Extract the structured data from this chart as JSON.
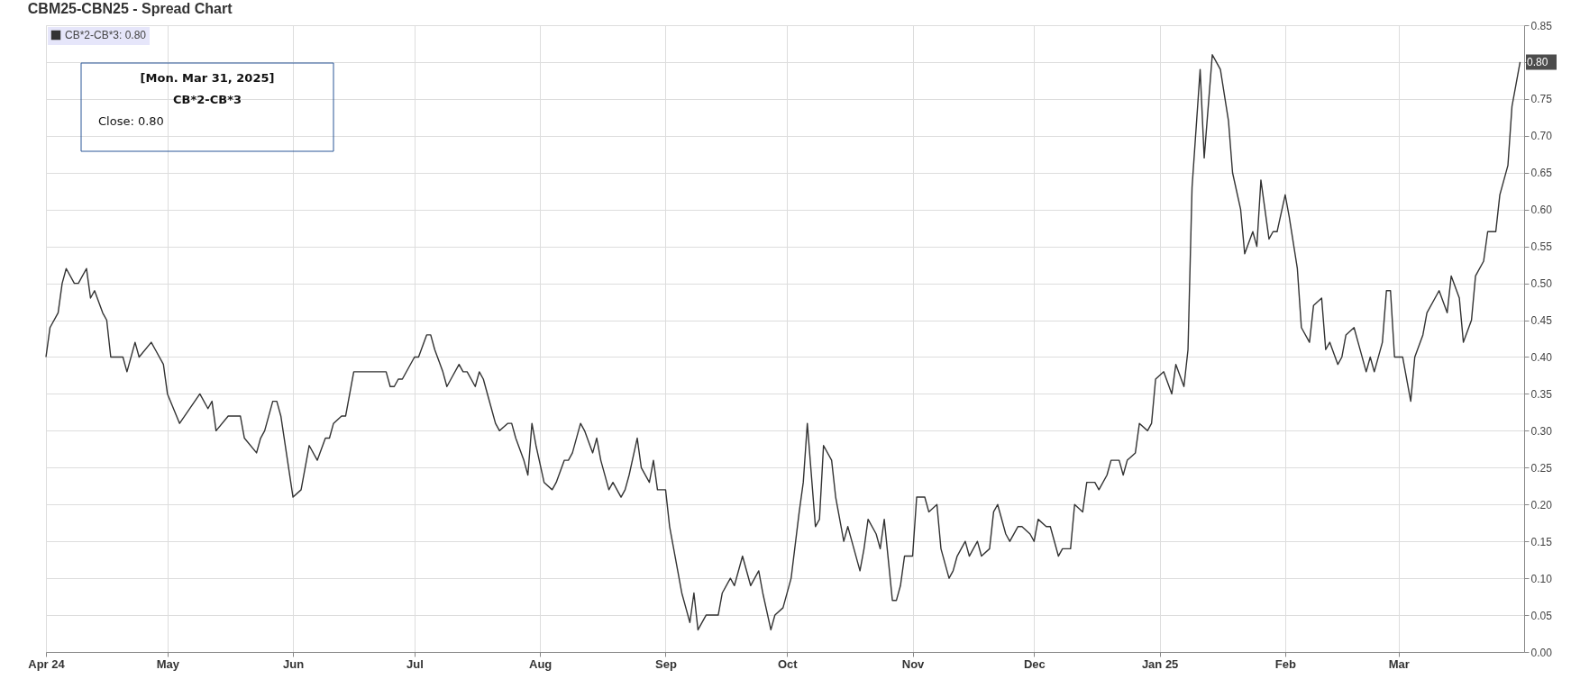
{
  "chart_data": {
    "type": "line",
    "title": "CBM25-CBN25 - Spread Chart",
    "annotations": [
      "[Mon. Mar 31, 2025]",
      "CB*2-CB*3",
      "Close: 0.80"
    ],
    "x": [
      "2024-04-01",
      "2024-04-02",
      "2024-04-04",
      "2024-04-05",
      "2024-04-06",
      "2024-04-08",
      "2024-04-09",
      "2024-04-11",
      "2024-04-12",
      "2024-04-13",
      "2024-04-15",
      "2024-04-16",
      "2024-04-17",
      "2024-04-20",
      "2024-04-21",
      "2024-04-23",
      "2024-04-24",
      "2024-04-27",
      "2024-04-28",
      "2024-04-30",
      "2024-05-01",
      "2024-05-04",
      "2024-05-09",
      "2024-05-11",
      "2024-05-12",
      "2024-05-13",
      "2024-05-16",
      "2024-05-19",
      "2024-05-20",
      "2024-05-23",
      "2024-05-24",
      "2024-05-25",
      "2024-05-27",
      "2024-05-28",
      "2024-05-29",
      "2024-06-01",
      "2024-06-03",
      "2024-06-05",
      "2024-06-07",
      "2024-06-09",
      "2024-06-10",
      "2024-06-11",
      "2024-06-13",
      "2024-06-14",
      "2024-06-16",
      "2024-06-24",
      "2024-06-25",
      "2024-06-26",
      "2024-06-27",
      "2024-06-28",
      "2024-07-01",
      "2024-07-02",
      "2024-07-04",
      "2024-07-05",
      "2024-07-06",
      "2024-07-08",
      "2024-07-09",
      "2024-07-10",
      "2024-07-12",
      "2024-07-13",
      "2024-07-14",
      "2024-07-16",
      "2024-07-17",
      "2024-07-18",
      "2024-07-20",
      "2024-07-21",
      "2024-07-22",
      "2024-07-24",
      "2024-07-25",
      "2024-07-26",
      "2024-07-28",
      "2024-07-29",
      "2024-07-30",
      "2024-07-31",
      "2024-08-02",
      "2024-08-04",
      "2024-08-05",
      "2024-08-07",
      "2024-08-08",
      "2024-08-09",
      "2024-08-11",
      "2024-08-12",
      "2024-08-14",
      "2024-08-15",
      "2024-08-16",
      "2024-08-18",
      "2024-08-19",
      "2024-08-21",
      "2024-08-22",
      "2024-08-23",
      "2024-08-25",
      "2024-08-26",
      "2024-08-28",
      "2024-08-29",
      "2024-08-30",
      "2024-09-01",
      "2024-09-02",
      "2024-09-04",
      "2024-09-05",
      "2024-09-07",
      "2024-09-08",
      "2024-09-09",
      "2024-09-11",
      "2024-09-14",
      "2024-09-15",
      "2024-09-17",
      "2024-09-18",
      "2024-09-20",
      "2024-09-22",
      "2024-09-24",
      "2024-09-25",
      "2024-09-27",
      "2024-09-28",
      "2024-09-30",
      "2024-10-02",
      "2024-10-04",
      "2024-10-05",
      "2024-10-06",
      "2024-10-08",
      "2024-10-09",
      "2024-10-10",
      "2024-10-12",
      "2024-10-13",
      "2024-10-15",
      "2024-10-16",
      "2024-10-17",
      "2024-10-19",
      "2024-10-20",
      "2024-10-21",
      "2024-10-23",
      "2024-10-24",
      "2024-10-25",
      "2024-10-27",
      "2024-10-28",
      "2024-10-29",
      "2024-10-30",
      "2024-11-01",
      "2024-11-02",
      "2024-11-04",
      "2024-11-05",
      "2024-11-07",
      "2024-11-08",
      "2024-11-10",
      "2024-11-11",
      "2024-11-12",
      "2024-11-14",
      "2024-11-15",
      "2024-11-17",
      "2024-11-18",
      "2024-11-20",
      "2024-11-21",
      "2024-11-22",
      "2024-11-24",
      "2024-11-25",
      "2024-11-27",
      "2024-11-28",
      "2024-11-30",
      "2024-12-01",
      "2024-12-02",
      "2024-12-04",
      "2024-12-05",
      "2024-12-07",
      "2024-12-08",
      "2024-12-10",
      "2024-12-11",
      "2024-12-13",
      "2024-12-14",
      "2024-12-16",
      "2024-12-17",
      "2024-12-19",
      "2024-12-20",
      "2024-12-22",
      "2024-12-23",
      "2024-12-24",
      "2024-12-26",
      "2024-12-27",
      "2024-12-29",
      "2024-12-30",
      "2024-12-31",
      "2025-01-02",
      "2025-01-04",
      "2025-01-05",
      "2025-01-07",
      "2025-01-08",
      "2025-01-09",
      "2025-01-11",
      "2025-01-12",
      "2025-01-14",
      "2025-01-15",
      "2025-01-16",
      "2025-01-18",
      "2025-01-19",
      "2025-01-21",
      "2025-01-22",
      "2025-01-24",
      "2025-01-25",
      "2025-01-26",
      "2025-01-28",
      "2025-01-29",
      "2025-01-30",
      "2025-02-01",
      "2025-02-02",
      "2025-02-04",
      "2025-02-05",
      "2025-02-07",
      "2025-02-08",
      "2025-02-10",
      "2025-02-11",
      "2025-02-12",
      "2025-02-14",
      "2025-02-15",
      "2025-02-16",
      "2025-02-18",
      "2025-02-19",
      "2025-02-21",
      "2025-02-22",
      "2025-02-23",
      "2025-02-25",
      "2025-02-26",
      "2025-02-27",
      "2025-02-28",
      "2025-03-02",
      "2025-03-04",
      "2025-03-05",
      "2025-03-07",
      "2025-03-08",
      "2025-03-10",
      "2025-03-11",
      "2025-03-13",
      "2025-03-14",
      "2025-03-16",
      "2025-03-17",
      "2025-03-19",
      "2025-03-20",
      "2025-03-22",
      "2025-03-23",
      "2025-03-25",
      "2025-03-26",
      "2025-03-28",
      "2025-03-29",
      "2025-03-31"
    ],
    "series": [
      {
        "name": "CB*2-CB*3: 0.80",
        "color": "#333333",
        "values": [
          0.4,
          0.44,
          0.46,
          0.5,
          0.52,
          0.5,
          0.5,
          0.52,
          0.48,
          0.49,
          0.46,
          0.45,
          0.4,
          0.4,
          0.38,
          0.42,
          0.4,
          0.42,
          0.41,
          0.39,
          0.35,
          0.31,
          0.35,
          0.33,
          0.34,
          0.3,
          0.32,
          0.32,
          0.29,
          0.27,
          0.29,
          0.3,
          0.34,
          0.34,
          0.32,
          0.21,
          0.22,
          0.28,
          0.26,
          0.29,
          0.29,
          0.31,
          0.32,
          0.32,
          0.38,
          0.38,
          0.36,
          0.36,
          0.37,
          0.37,
          0.4,
          0.4,
          0.43,
          0.43,
          0.41,
          0.38,
          0.36,
          0.37,
          0.39,
          0.38,
          0.38,
          0.36,
          0.38,
          0.37,
          0.33,
          0.31,
          0.3,
          0.31,
          0.31,
          0.29,
          0.26,
          0.24,
          0.31,
          0.28,
          0.23,
          0.22,
          0.23,
          0.26,
          0.26,
          0.27,
          0.31,
          0.3,
          0.27,
          0.29,
          0.26,
          0.22,
          0.23,
          0.21,
          0.22,
          0.24,
          0.29,
          0.25,
          0.23,
          0.26,
          0.22,
          0.22,
          0.17,
          0.11,
          0.08,
          0.04,
          0.08,
          0.03,
          0.05,
          0.05,
          0.08,
          0.1,
          0.09,
          0.13,
          0.09,
          0.11,
          0.08,
          0.03,
          0.05,
          0.06,
          0.1,
          0.19,
          0.23,
          0.31,
          0.17,
          0.18,
          0.28,
          0.26,
          0.21,
          0.15,
          0.17,
          0.15,
          0.11,
          0.14,
          0.18,
          0.16,
          0.14,
          0.18,
          0.07,
          0.07,
          0.09,
          0.13,
          0.13,
          0.21,
          0.21,
          0.19,
          0.2,
          0.14,
          0.1,
          0.11,
          0.13,
          0.15,
          0.13,
          0.15,
          0.13,
          0.14,
          0.19,
          0.2,
          0.16,
          0.15,
          0.17,
          0.17,
          0.16,
          0.15,
          0.18,
          0.17,
          0.17,
          0.13,
          0.14,
          0.14,
          0.2,
          0.19,
          0.23,
          0.23,
          0.22,
          0.24,
          0.26,
          0.26,
          0.24,
          0.26,
          0.27,
          0.31,
          0.3,
          0.31,
          0.37,
          0.38,
          0.35,
          0.39,
          0.36,
          0.41,
          0.63,
          0.79,
          0.67,
          0.81,
          0.8,
          0.79,
          0.72,
          0.65,
          0.6,
          0.54,
          0.57,
          0.55,
          0.64,
          0.56,
          0.57,
          0.57,
          0.62,
          0.59,
          0.52,
          0.44,
          0.42,
          0.47,
          0.48,
          0.41,
          0.42,
          0.39,
          0.4,
          0.43,
          0.44,
          0.42,
          0.38,
          0.4,
          0.38,
          0.42,
          0.49,
          0.49,
          0.4,
          0.4,
          0.34,
          0.4,
          0.43,
          0.46,
          0.48,
          0.49,
          0.46,
          0.51,
          0.48,
          0.42,
          0.45,
          0.51,
          0.53,
          0.57,
          0.57,
          0.62,
          0.66,
          0.74,
          0.8
        ],
        "value_labels": [
          null,
          null,
          null,
          null,
          null,
          null,
          null,
          null,
          null,
          null,
          null,
          null,
          null,
          null,
          null,
          null,
          null,
          null,
          null,
          null,
          null,
          null,
          null,
          null,
          null,
          null,
          null,
          null,
          null,
          null,
          null,
          null,
          null,
          null,
          null,
          null,
          null,
          null,
          null,
          null,
          null,
          null,
          null,
          null,
          null,
          null,
          null,
          null,
          null,
          null,
          null,
          null,
          null,
          null,
          null,
          null,
          null,
          null,
          null,
          null,
          null,
          null,
          null,
          null,
          null,
          null,
          null,
          null,
          null,
          null,
          null,
          null,
          null,
          null,
          null,
          null,
          null,
          null,
          null,
          null,
          null,
          null,
          null,
          null,
          null,
          null,
          null,
          null,
          null,
          null,
          null,
          null,
          null,
          null,
          null,
          null,
          null,
          null,
          null,
          null,
          null,
          null,
          null,
          null,
          null,
          null,
          null,
          null,
          null,
          null,
          null,
          null,
          null,
          null,
          null,
          null,
          null,
          null,
          null,
          null,
          null,
          null,
          null,
          null,
          null,
          null,
          null,
          null,
          null,
          null,
          null,
          null,
          null,
          null,
          null,
          null,
          null,
          null,
          null,
          null,
          null,
          null,
          null,
          null,
          null,
          null,
          null,
          null,
          null,
          null,
          null,
          null,
          null,
          null,
          null,
          null,
          null,
          null,
          null,
          null,
          null,
          null,
          null,
          null,
          null,
          null,
          null,
          null,
          null,
          null,
          null,
          null,
          null,
          null,
          null,
          null,
          null,
          null,
          null,
          null,
          null,
          null,
          null,
          null,
          null,
          null,
          null,
          null,
          null,
          null,
          null,
          null,
          null,
          null,
          null,
          null,
          null,
          null,
          null,
          null,
          null,
          null,
          null,
          null,
          null,
          null,
          null,
          null,
          null,
          null,
          null,
          null,
          null,
          null,
          null,
          null,
          null,
          null,
          null,
          null,
          null,
          null,
          null,
          null,
          null,
          null,
          null,
          null,
          null,
          null,
          null,
          null,
          null,
          null,
          null,
          null,
          null,
          null,
          null,
          null,
          "0.80"
        ]
      }
    ],
    "xlim": [
      "2024-04-01",
      "2025-04-01"
    ],
    "xticks": [
      {
        "value": "2024-04-01",
        "label": "Apr 24"
      },
      {
        "value": "2024-05-01",
        "label": "May"
      },
      {
        "value": "2024-06-01",
        "label": "Jun"
      },
      {
        "value": "2024-07-01",
        "label": "Jul"
      },
      {
        "value": "2024-08-01",
        "label": "Aug"
      },
      {
        "value": "2024-09-01",
        "label": "Sep"
      },
      {
        "value": "2024-10-01",
        "label": "Oct"
      },
      {
        "value": "2024-11-01",
        "label": "Nov"
      },
      {
        "value": "2024-12-01",
        "label": "Dec"
      },
      {
        "value": "2025-01-01",
        "label": "Jan 25"
      },
      {
        "value": "2025-02-01",
        "label": "Feb"
      },
      {
        "value": "2025-03-01",
        "label": "Mar"
      }
    ],
    "ylim": [
      0,
      0.85
    ],
    "yticks": [
      {
        "value": 0,
        "label": "0.00"
      },
      {
        "value": 0.05,
        "label": "0.05"
      },
      {
        "value": 0.1,
        "label": "0.10"
      },
      {
        "value": 0.15,
        "label": "0.15"
      },
      {
        "value": 0.2,
        "label": "0.20"
      },
      {
        "value": 0.25,
        "label": "0.25"
      },
      {
        "value": 0.3,
        "label": "0.30"
      },
      {
        "value": 0.35,
        "label": "0.35"
      },
      {
        "value": 0.4,
        "label": "0.40"
      },
      {
        "value": 0.45,
        "label": "0.45"
      },
      {
        "value": 0.5,
        "label": "0.50"
      },
      {
        "value": 0.55,
        "label": "0.55"
      },
      {
        "value": 0.6,
        "label": "0.60"
      },
      {
        "value": 0.65,
        "label": "0.65"
      },
      {
        "value": 0.7,
        "label": "0.70"
      },
      {
        "value": 0.75,
        "label": "0.75"
      },
      {
        "value": 0.8,
        "label": null
      },
      {
        "value": 0.85,
        "label": "0.85"
      }
    ],
    "grid": true,
    "legend": "top left"
  }
}
